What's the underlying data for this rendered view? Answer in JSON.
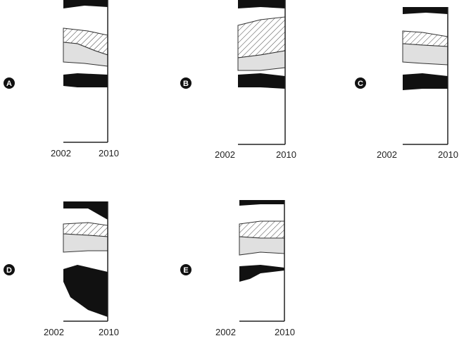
{
  "chart_data": [
    {
      "type": "area",
      "panel_label": "A",
      "x": [
        "2002",
        "2010"
      ],
      "x_tick_labels": [
        "2002",
        "2010"
      ],
      "colors": [
        "#111111",
        "#e0e0e0",
        "#ffffff"
      ]
    },
    {
      "type": "area",
      "panel_label": "B",
      "x": [
        "2002",
        "2010"
      ],
      "x_tick_labels": [
        "2002",
        "2010"
      ],
      "colors": [
        "#111111",
        "#e0e0e0",
        "#ffffff"
      ]
    },
    {
      "type": "area",
      "panel_label": "C",
      "x": [
        "2002",
        "2010"
      ],
      "x_tick_labels": [
        "2002",
        "2010"
      ],
      "colors": [
        "#111111",
        "#e0e0e0",
        "#ffffff"
      ]
    },
    {
      "type": "area",
      "panel_label": "D",
      "x": [
        "2002",
        "2010"
      ],
      "x_tick_labels": [
        "2002",
        "2010"
      ],
      "colors": [
        "#111111",
        "#e0e0e0",
        "#ffffff"
      ]
    },
    {
      "type": "area",
      "panel_label": "E",
      "x": [
        "2002",
        "2010"
      ],
      "x_tick_labels": [
        "2002",
        "2010"
      ],
      "colors": [
        "#111111",
        "#e0e0e0",
        "#ffffff"
      ]
    }
  ]
}
